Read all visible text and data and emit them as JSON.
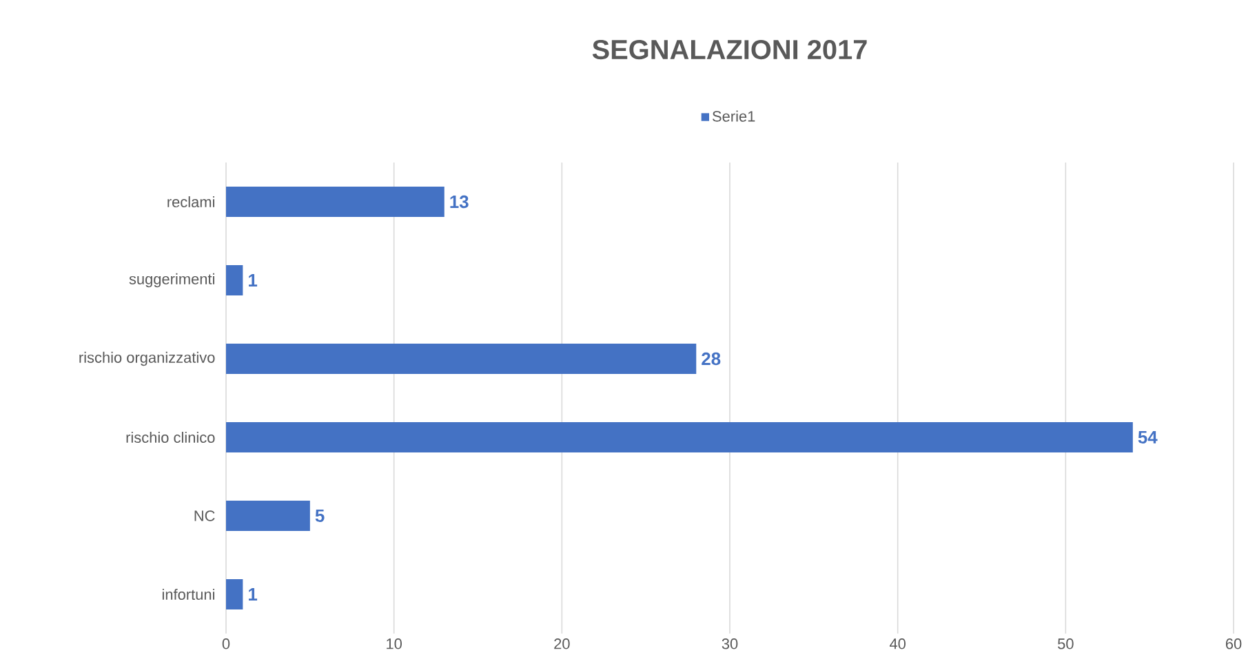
{
  "chart_data": {
    "type": "bar",
    "orientation": "horizontal",
    "title": "SEGNALAZIONI 2017",
    "categories": [
      "reclami",
      "suggerimenti",
      "rischio organizzativo",
      "rischio clinico",
      "NC",
      "infortuni"
    ],
    "series": [
      {
        "name": "Serie1",
        "color": "#4472c4",
        "values": [
          13,
          1,
          28,
          54,
          5,
          1
        ]
      }
    ],
    "xlim": [
      0,
      60
    ],
    "xticks": [
      0,
      10,
      20,
      30,
      40,
      50,
      60
    ],
    "grid": "x",
    "legend": "top",
    "data_labels": true
  }
}
